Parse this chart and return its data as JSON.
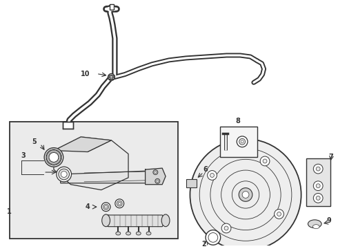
{
  "bg_color": "#ffffff",
  "line_color": "#333333",
  "box_bg": "#ebebeb",
  "figsize": [
    4.9,
    3.6
  ],
  "dpi": 100
}
